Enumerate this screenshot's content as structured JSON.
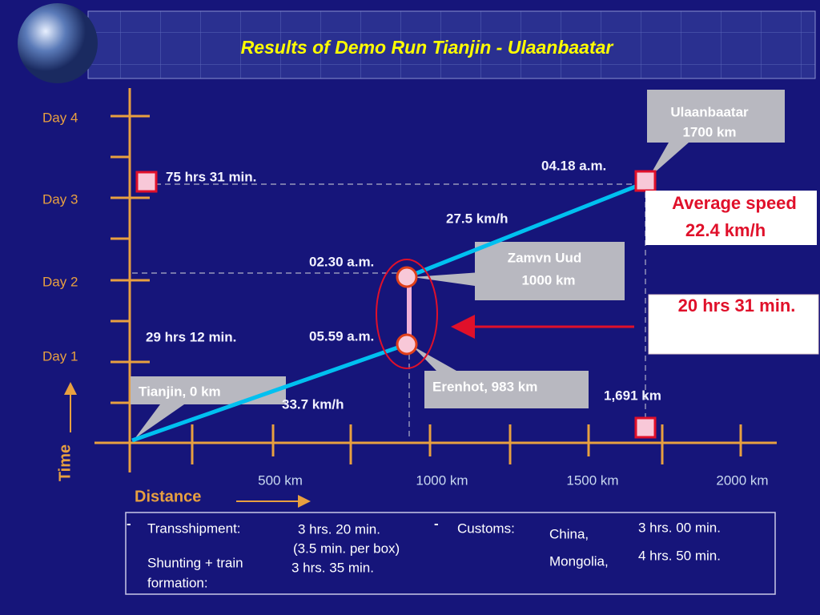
{
  "header": {
    "title": "Results of Demo Run Tianjin - Ulaanbaatar"
  },
  "time_axis": {
    "label": "Time",
    "days": [
      "Day 4",
      "Day 3",
      "Day 2",
      "Day 1"
    ]
  },
  "distance_axis": {
    "label": "Distance",
    "ticks": [
      "500 km",
      "1000 km",
      "1500 km",
      "2000 km"
    ]
  },
  "callouts": {
    "ulaanbaatar": [
      "Ulaanbaatar",
      "1700 km"
    ],
    "zamyn_uud": [
      "Zamvn Uud",
      "1000 km"
    ],
    "erenhot": "Erenhot, 983 km",
    "tianjin": "Tianjin, 0 km"
  },
  "annotations": {
    "total_time": "75 hrs 31 min.",
    "arrival": "04.18 a.m.",
    "speed_2": "27.5 km/h",
    "depart_border": "02.30 a.m.",
    "time_1": "29 hrs 12 min.",
    "arrive_border": "05.59 a.m.",
    "speed_1": "33.7 km/h",
    "distance_total": "1,691 km"
  },
  "average_speed": [
    "Average speed",
    "22.4 km/h"
  ],
  "border_time": "20 hrs 31 min.",
  "notes": {
    "dash1": "-",
    "transshipment_label": "Transshipment:",
    "transshipment_time": "3 hrs. 20 min.",
    "per_box": "(3.5  min.  per box)",
    "shunting_label": [
      "Shunting + train",
      "formation:"
    ],
    "shunting_time": "3 hrs. 35 min.",
    "dash2": "-",
    "customs_label": "Customs:",
    "china": "China,",
    "mongolia": "Mongolia,",
    "china_time": "3 hrs. 00 min.",
    "mongolia_time": "4 hrs. 50 min."
  }
}
